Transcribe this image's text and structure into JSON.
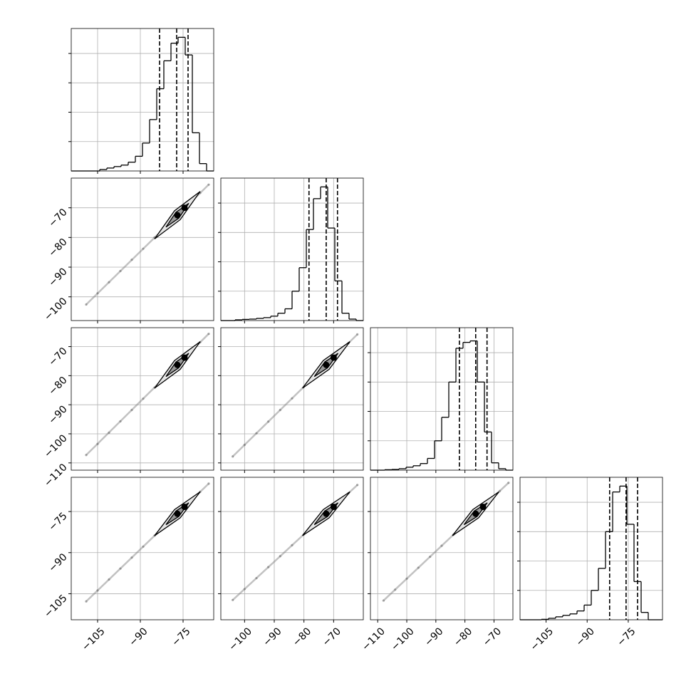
{
  "chart_data": {
    "type": "corner",
    "grid": true,
    "color": "#000000",
    "axes": [
      {
        "lim": [
          -114.25,
          -64.25
        ],
        "ticks": [
          {
            "value": -105,
            "label": "−105"
          },
          {
            "value": -90,
            "label": "−90"
          },
          {
            "value": -75,
            "label": "−75"
          }
        ]
      },
      {
        "lim": [
          -108,
          -60
        ],
        "ticks": [
          {
            "value": -100,
            "label": "−100"
          },
          {
            "value": -90,
            "label": "−90"
          },
          {
            "value": -80,
            "label": "−80"
          },
          {
            "value": -70,
            "label": "−70"
          }
        ]
      },
      {
        "lim": [
          -112.5,
          -63.5
        ],
        "ticks": [
          {
            "value": -110,
            "label": "−110"
          },
          {
            "value": -100,
            "label": "−100"
          },
          {
            "value": -90,
            "label": "−90"
          },
          {
            "value": -80,
            "label": "−80"
          },
          {
            "value": -70,
            "label": "−70"
          }
        ]
      },
      {
        "lim": [
          -114.5,
          -62.5
        ],
        "ticks": [
          {
            "value": -105,
            "label": "−105"
          },
          {
            "value": -90,
            "label": "−90"
          },
          {
            "value": -75,
            "label": "−75"
          }
        ]
      }
    ],
    "histograms": [
      {
        "bins": [
          -114.25,
          -111.75,
          -109.25,
          -106.75,
          -104.25,
          -101.75,
          -99.25,
          -96.75,
          -94.25,
          -91.75,
          -89.25,
          -86.75,
          -84.25,
          -81.75,
          -79.25,
          -76.75,
          -74.25,
          -71.75,
          -69.25,
          -66.75,
          -64.25
        ],
        "values": [
          0,
          0,
          0,
          0,
          0.01,
          0.02,
          0.03,
          0.04,
          0.06,
          0.1,
          0.19,
          0.35,
          0.56,
          0.75,
          0.87,
          0.91,
          0.79,
          0.26,
          0.05,
          0
        ],
        "quantiles": [
          -83.25,
          -77.25,
          -73.25
        ],
        "ylim": [
          0,
          0.97
        ],
        "yticks": [
          0.2,
          0.4,
          0.6,
          0.8
        ]
      },
      {
        "bins": [
          -108,
          -105.6,
          -103.2,
          -100.8,
          -98.4,
          -96,
          -93.6,
          -91.2,
          -88.8,
          -86.4,
          -84,
          -81.6,
          -79.2,
          -76.8,
          -74.4,
          -72,
          -69.6,
          -67.2,
          -64.8,
          -62.4,
          -60
        ],
        "values": [
          0,
          0,
          0.005,
          0.008,
          0.01,
          0.015,
          0.02,
          0.03,
          0.05,
          0.08,
          0.2,
          0.36,
          0.62,
          0.83,
          0.91,
          0.63,
          0.27,
          0.05,
          0.01,
          0
        ],
        "quantiles": [
          -78.3,
          -72.5,
          -68.7
        ],
        "ylim": [
          0,
          0.97
        ],
        "yticks": [
          0.2,
          0.4,
          0.6,
          0.8
        ]
      },
      {
        "bins": [
          -112.5,
          -110.05,
          -107.6,
          -105.15,
          -102.7,
          -100.25,
          -97.8,
          -95.35,
          -92.9,
          -90.45,
          -88,
          -85.55,
          -83.1,
          -80.65,
          -78.2,
          -75.75,
          -73.3,
          -70.85,
          -68.4,
          -65.95,
          -63.5
        ],
        "values": [
          0,
          0,
          0.003,
          0.005,
          0.01,
          0.02,
          0.03,
          0.045,
          0.08,
          0.2,
          0.36,
          0.6,
          0.83,
          0.87,
          0.88,
          0.6,
          0.26,
          0.05,
          0.01,
          0
        ],
        "quantiles": [
          -81.9,
          -76.3,
          -72.4
        ],
        "ylim": [
          0,
          0.97
        ],
        "yticks": [
          0.2,
          0.4,
          0.6,
          0.8
        ]
      },
      {
        "bins": [
          -114.5,
          -111.9,
          -109.3,
          -106.7,
          -104.1,
          -101.5,
          -98.9,
          -96.3,
          -93.7,
          -91.1,
          -88.5,
          -85.9,
          -83.3,
          -80.7,
          -78.1,
          -75.5,
          -72.9,
          -70.3,
          -67.7,
          -65.1,
          -62.5
        ],
        "values": [
          0,
          0,
          0,
          0.003,
          0.01,
          0.02,
          0.03,
          0.04,
          0.06,
          0.1,
          0.2,
          0.35,
          0.6,
          0.87,
          0.91,
          0.65,
          0.26,
          0.05,
          0,
          0
        ],
        "quantiles": [
          -81.8,
          -75.8,
          -71.6
        ],
        "ylim": [
          0,
          0.97
        ],
        "yticks": [
          0.2,
          0.4,
          0.6,
          0.8
        ]
      }
    ],
    "pairs": [
      {
        "x": [
          -109,
          -105,
          -101,
          -97,
          -93,
          -89,
          -85,
          -81,
          -77,
          -73,
          -69,
          -66
        ],
        "y": [
          -102.6,
          -98.8,
          -95.1,
          -91.3,
          -87.5,
          -83.8,
          -80,
          -76.3,
          -72.5,
          -68.7,
          -65,
          -62.2
        ],
        "contours": [
          {
            "x": [
              -85,
              -76,
              -69,
              -78
            ],
            "y": [
              -80.5,
              -74,
              -64.5,
              -71
            ]
          },
          {
            "x": [
              -81,
              -76.5,
              -73,
              -77.5
            ],
            "y": [
              -76.5,
              -73.5,
              -68.5,
              -71.5
            ]
          }
        ],
        "peaks": {
          "x": [
            -77,
            -74.5
          ],
          "y": [
            -72.5,
            -70
          ]
        }
      },
      {
        "x": [
          -109,
          -105,
          -101,
          -97,
          -93,
          -89,
          -85,
          -81,
          -77,
          -73,
          -69,
          -66
        ],
        "y": [
          -107.3,
          -103.5,
          -99.6,
          -95.7,
          -91.8,
          -87.9,
          -84.1,
          -80.2,
          -76.3,
          -72.4,
          -68.5,
          -65.6
        ],
        "contours": [
          {
            "x": [
              -85,
              -76,
              -69,
              -78
            ],
            "y": [
              -84.3,
              -77.8,
              -68.3,
              -74.8
            ]
          },
          {
            "x": [
              -81,
              -76.5,
              -73,
              -77.5
            ],
            "y": [
              -80.3,
              -77.3,
              -72.3,
              -75.3
            ]
          }
        ],
        "peaks": {
          "x": [
            -77,
            -74.5
          ],
          "y": [
            -76.3,
            -73.8
          ]
        }
      },
      {
        "x": [
          -104,
          -100,
          -96,
          -92,
          -88,
          -84,
          -80,
          -76,
          -72.5,
          -69,
          -65,
          -62
        ],
        "y": [
          -107.8,
          -103.8,
          -99.8,
          -95.8,
          -91.8,
          -87.8,
          -83.8,
          -79.8,
          -76.3,
          -72.8,
          -68.8,
          -65.8
        ],
        "contours": [
          {
            "x": [
              -80.5,
              -71.5,
              -64.5,
              -73.5
            ],
            "y": [
              -84.3,
              -77.8,
              -68.3,
              -74.8
            ]
          },
          {
            "x": [
              -76.5,
              -72,
              -68.5,
              -73
            ],
            "y": [
              -80.3,
              -77.3,
              -72.3,
              -75.3
            ]
          }
        ],
        "peaks": {
          "x": [
            -72.5,
            -70
          ],
          "y": [
            -76.3,
            -73.8
          ]
        }
      },
      {
        "x": [
          -109,
          -105,
          -101,
          -97,
          -93,
          -89,
          -85,
          -81,
          -77,
          -73,
          -69,
          -66
        ],
        "y": [
          -107.8,
          -103.8,
          -99.8,
          -95.8,
          -91.8,
          -87.8,
          -83.8,
          -79.8,
          -75.8,
          -71.8,
          -67.8,
          -64.8
        ],
        "contours": [
          {
            "x": [
              -85,
              -76,
              -69,
              -78
            ],
            "y": [
              -83.8,
              -77.3,
              -67.8,
              -74.3
            ]
          },
          {
            "x": [
              -81,
              -76.5,
              -73,
              -77.5
            ],
            "y": [
              -79.8,
              -76.8,
              -71.8,
              -74.8
            ]
          }
        ],
        "peaks": {
          "x": [
            -77,
            -74.5
          ],
          "y": [
            -75.8,
            -73.3
          ]
        }
      },
      {
        "x": [
          -104,
          -100,
          -96,
          -92,
          -88,
          -84,
          -80,
          -76,
          -72.5,
          -69,
          -65,
          -62
        ],
        "y": [
          -107.3,
          -103.3,
          -99.3,
          -95.3,
          -91.3,
          -87.3,
          -83.3,
          -79.3,
          -75.8,
          -72.3,
          -68.3,
          -65.3
        ],
        "contours": [
          {
            "x": [
              -80.5,
              -71.5,
              -64.5,
              -73.5
            ],
            "y": [
              -83.8,
              -77.3,
              -67.8,
              -74.3
            ]
          },
          {
            "x": [
              -76.5,
              -72,
              -68.5,
              -73
            ],
            "y": [
              -79.8,
              -76.8,
              -71.8,
              -74.8
            ]
          }
        ],
        "peaks": {
          "x": [
            -72.5,
            -70
          ],
          "y": [
            -75.8,
            -73.3
          ]
        }
      },
      {
        "x": [
          -108,
          -104,
          -100,
          -96,
          -92,
          -88,
          -84,
          -80,
          -76.3,
          -72,
          -68,
          -65
        ],
        "y": [
          -107.5,
          -103.5,
          -99.5,
          -95.5,
          -91.5,
          -87.5,
          -83.5,
          -79.5,
          -75.8,
          -71.5,
          -67.5,
          -64.5
        ],
        "contours": [
          {
            "x": [
              -84.3,
              -75.3,
              -68.3,
              -77.3
            ],
            "y": [
              -83.8,
              -77.3,
              -67.8,
              -74.3
            ]
          },
          {
            "x": [
              -80.3,
              -75.8,
              -72.3,
              -76.8
            ],
            "y": [
              -79.8,
              -76.8,
              -71.8,
              -74.8
            ]
          }
        ],
        "peaks": {
          "x": [
            -76.3,
            -73.8
          ],
          "y": [
            -75.8,
            -73.3
          ]
        }
      }
    ]
  }
}
